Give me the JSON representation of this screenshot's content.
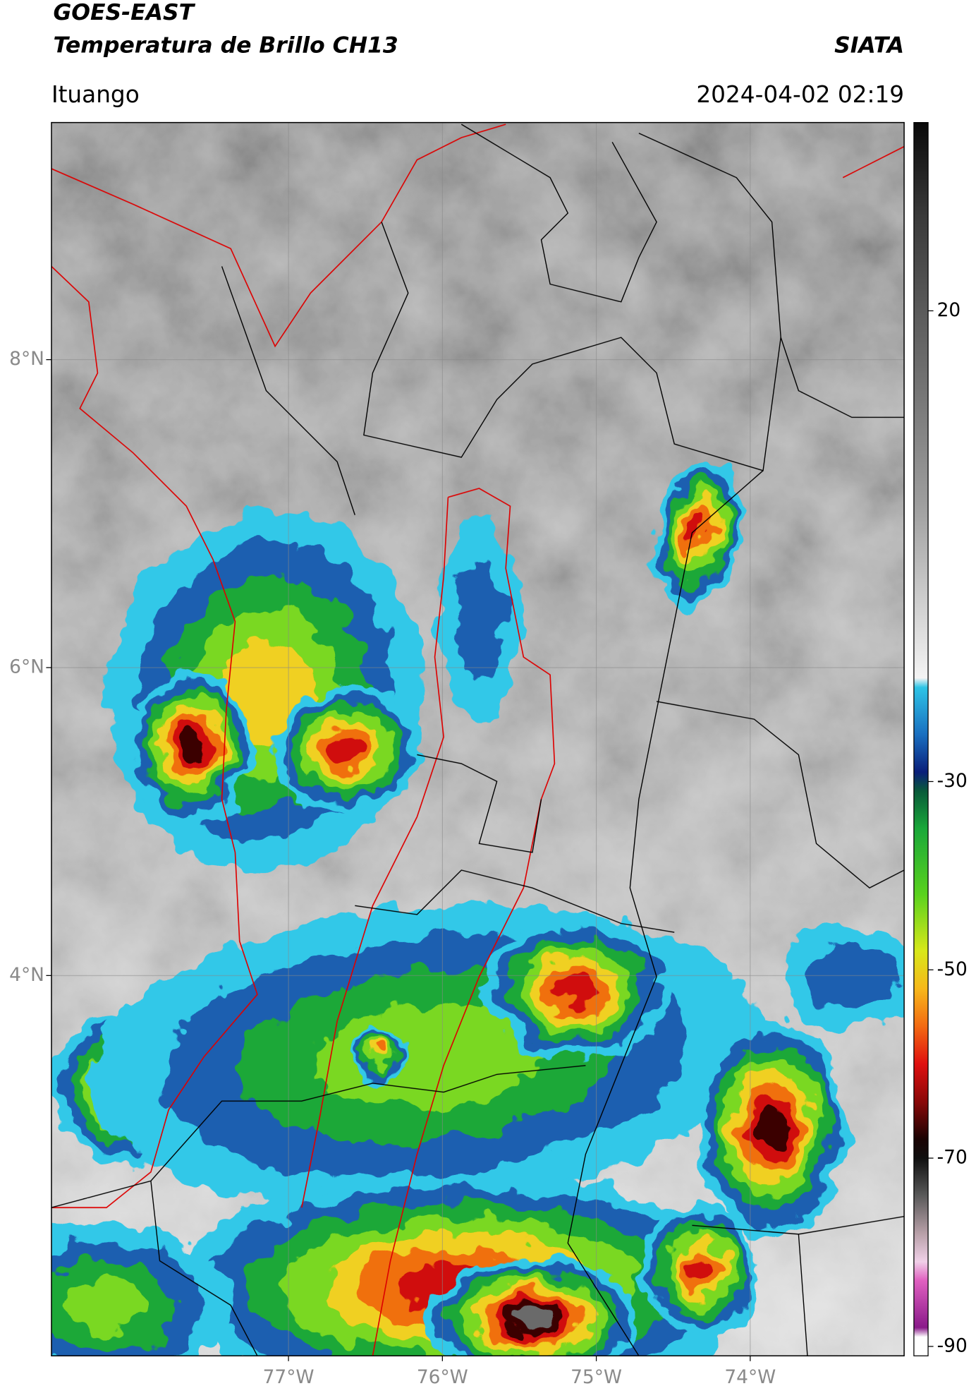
{
  "header": {
    "satellite": "GOES-EAST",
    "product": "Temperatura de Brillo CH13",
    "organization": "SIATA",
    "location": "Ituango",
    "datetime": "2024-04-02 02:19"
  },
  "map": {
    "xlim": [
      -78.54,
      -73.0
    ],
    "ylim": [
      1.53,
      9.54
    ],
    "xticks": [
      {
        "value": -77,
        "label": "77°W"
      },
      {
        "value": -76,
        "label": "76°W"
      },
      {
        "value": -75,
        "label": "75°W"
      },
      {
        "value": -74,
        "label": "74°W"
      }
    ],
    "yticks": [
      {
        "value": 8,
        "label": "8°N"
      },
      {
        "value": 6,
        "label": "6°N"
      },
      {
        "value": 4,
        "label": "4°N"
      }
    ],
    "grid": true
  },
  "colorbar": {
    "lim": [
      -91,
      40
    ],
    "ticks": [
      20,
      -30,
      -50,
      -70,
      -90
    ],
    "stops": [
      {
        "value": 40,
        "color": "#0a0a0a"
      },
      {
        "value": 30,
        "color": "#3a3a3a"
      },
      {
        "value": 20,
        "color": "#5a5a5a"
      },
      {
        "value": 10,
        "color": "#7a7a7a"
      },
      {
        "value": 0,
        "color": "#9c9c9c"
      },
      {
        "value": -10,
        "color": "#cacaca"
      },
      {
        "value": -19,
        "color": "#f4f4f4"
      },
      {
        "value": -20,
        "color": "#2ec4e6"
      },
      {
        "value": -25,
        "color": "#1a6fc0"
      },
      {
        "value": -29,
        "color": "#0a1f7a"
      },
      {
        "value": -31,
        "color": "#0a5a3a"
      },
      {
        "value": -35,
        "color": "#1aa83a"
      },
      {
        "value": -42,
        "color": "#5ad21e"
      },
      {
        "value": -48,
        "color": "#d8e81a"
      },
      {
        "value": -52,
        "color": "#f7b81a"
      },
      {
        "value": -56,
        "color": "#f36a12"
      },
      {
        "value": -60,
        "color": "#e01010"
      },
      {
        "value": -64,
        "color": "#8a0808"
      },
      {
        "value": -68,
        "color": "#1a0404"
      },
      {
        "value": -70,
        "color": "#101010"
      },
      {
        "value": -74,
        "color": "#5a5a5a"
      },
      {
        "value": -78,
        "color": "#b8a0a8"
      },
      {
        "value": -81,
        "color": "#f0d0e8"
      },
      {
        "value": -83,
        "color": "#e060c0"
      },
      {
        "value": -88,
        "color": "#8a1a8a"
      },
      {
        "value": -89,
        "color": "#ffffff"
      },
      {
        "value": -91,
        "color": "#ffffff"
      }
    ]
  }
}
